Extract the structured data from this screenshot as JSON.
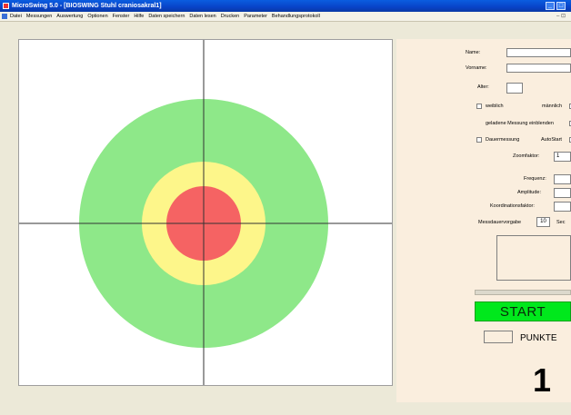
{
  "window": {
    "title": "MicroSwing 5.0 - [BIOSWING Stuhl craniosakral1]",
    "controls": [
      "_",
      "□"
    ]
  },
  "menu": {
    "items": [
      "Datei",
      "Messungen",
      "Auswertung",
      "Optionen",
      "Fenster",
      "Hilfe",
      "Daten speichern",
      "Daten lesen",
      "Drucken",
      "Parameter",
      "Behandlungsprotokoll"
    ],
    "mdi_controls": "– ⊡"
  },
  "target": {
    "zones": [
      {
        "name": "outer",
        "color": "#8ee889"
      },
      {
        "name": "middle",
        "color": "#fdf68a"
      },
      {
        "name": "inner",
        "color": "#f56363"
      }
    ],
    "crosshair_color": "#333333"
  },
  "form": {
    "name_label": "Name:",
    "vorname_label": "Vorname:",
    "alter_label": "Alter:",
    "weiblich_label": "weiblich",
    "maennlich_label": "männlich",
    "geladene_label": "geladene Messung einblenden",
    "dauermessung_label": "Dauermessung",
    "autostart_label": "AutoStart",
    "zoomfaktor_label": "Zoomfaktor:",
    "zoomfaktor_value": "1",
    "frequenz_label": "Frequenz:",
    "amplitude_label": "Amplitude:",
    "koordinationsfaktor_label": "Koordinationsfaktor:",
    "messdauer_label": "Messdauervorgabe",
    "messdauer_value": "10",
    "messdauer_unit": "Sec"
  },
  "start_label": "START",
  "punkte_label": "PUNKTE",
  "big_number": "1"
}
